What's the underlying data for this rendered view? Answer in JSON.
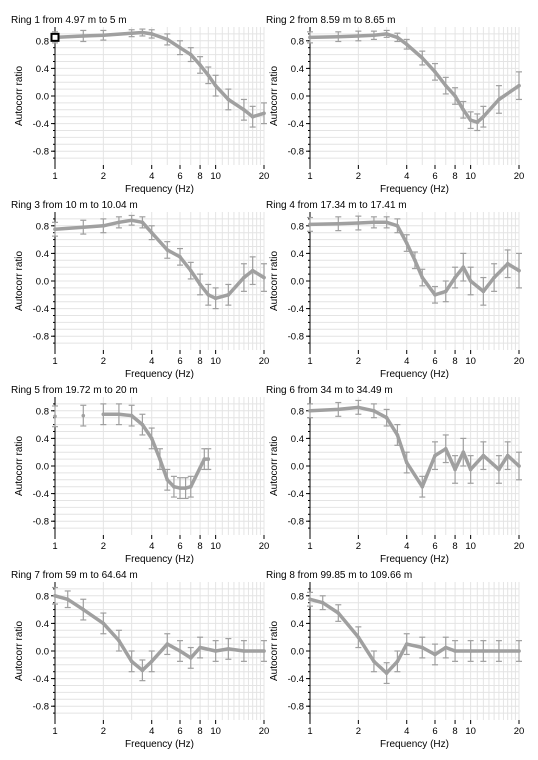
{
  "common": {
    "xlabel": "Frequency (Hz)",
    "ylabel": "Autocorr ratio",
    "x_ticks": [
      1,
      2,
      4,
      6,
      8,
      10,
      20
    ],
    "x_tick_labels": [
      "1",
      "2",
      "4",
      "6",
      "8",
      "10",
      "20"
    ],
    "y_ticks": [
      0.8,
      0.4,
      0.0,
      -0.4,
      -0.8
    ],
    "y_tick_labels": [
      "0.8",
      "0.4",
      "0.0",
      "-0.4",
      "-0.8"
    ],
    "series_color": "#a0a0a0"
  },
  "chart_data": [
    {
      "type": "line",
      "title": "Ring 1 from 4.97 m to 5 m",
      "xlabel": "Frequency (Hz)",
      "ylabel": "Autocorr ratio",
      "xscale": "log",
      "xlim": [
        1,
        20
      ],
      "ylim": [
        -1.0,
        1.0
      ],
      "grid": true,
      "x": [
        1,
        1.5,
        2,
        3,
        3.5,
        4,
        5,
        6,
        7,
        8,
        9,
        10,
        12,
        15,
        17,
        20
      ],
      "y": [
        0.85,
        0.87,
        0.88,
        0.91,
        0.92,
        0.9,
        0.82,
        0.7,
        0.6,
        0.45,
        0.3,
        0.15,
        -0.05,
        -0.2,
        -0.3,
        -0.25
      ],
      "yerr": [
        0.08,
        0.08,
        0.07,
        0.05,
        0.05,
        0.06,
        0.08,
        0.1,
        0.1,
        0.12,
        0.12,
        0.15,
        0.15,
        0.15,
        0.15,
        0.15
      ]
    },
    {
      "type": "line",
      "title": "Ring 2 from 8.59 m to 8.65 m",
      "xlabel": "Frequency (Hz)",
      "ylabel": "Autocorr ratio",
      "xscale": "log",
      "xlim": [
        1,
        20
      ],
      "ylim": [
        -1.0,
        1.0
      ],
      "grid": true,
      "x": [
        1,
        1.5,
        2,
        2.5,
        3,
        3.5,
        4,
        5,
        6,
        7,
        8,
        9,
        10,
        11,
        12,
        15,
        20
      ],
      "y": [
        0.85,
        0.86,
        0.87,
        0.88,
        0.9,
        0.85,
        0.75,
        0.55,
        0.35,
        0.15,
        0.0,
        -0.2,
        -0.35,
        -0.38,
        -0.3,
        -0.05,
        0.15
      ],
      "yerr": [
        0.08,
        0.07,
        0.07,
        0.06,
        0.05,
        0.06,
        0.07,
        0.1,
        0.12,
        0.12,
        0.12,
        0.12,
        0.12,
        0.12,
        0.15,
        0.2,
        0.2
      ]
    },
    {
      "type": "line",
      "title": "Ring 3 from 10 m to 10.04 m",
      "xlabel": "Frequency (Hz)",
      "ylabel": "Autocorr ratio",
      "xscale": "log",
      "xlim": [
        1,
        20
      ],
      "ylim": [
        -1.0,
        1.0
      ],
      "grid": true,
      "x": [
        1,
        1.5,
        2,
        2.5,
        3,
        3.5,
        4,
        5,
        6,
        7,
        8,
        9,
        10,
        12,
        15,
        17,
        20
      ],
      "y": [
        0.75,
        0.78,
        0.8,
        0.85,
        0.88,
        0.85,
        0.7,
        0.45,
        0.35,
        0.15,
        -0.05,
        -0.2,
        -0.25,
        -0.2,
        0.05,
        0.15,
        0.05
      ],
      "yerr": [
        0.1,
        0.1,
        0.1,
        0.08,
        0.07,
        0.08,
        0.1,
        0.12,
        0.12,
        0.12,
        0.15,
        0.15,
        0.15,
        0.15,
        0.2,
        0.2,
        0.2
      ]
    },
    {
      "type": "line",
      "title": "Ring 4 from 17.34 m to 17.41 m",
      "xlabel": "Frequency (Hz)",
      "ylabel": "Autocorr ratio",
      "xscale": "log",
      "xlim": [
        1,
        20
      ],
      "ylim": [
        -1.0,
        1.0
      ],
      "grid": true,
      "x": [
        1,
        1.5,
        2,
        2.5,
        3,
        3.5,
        4,
        4.5,
        5,
        6,
        7,
        8,
        9,
        10,
        12,
        14,
        17,
        20
      ],
      "y": [
        0.82,
        0.83,
        0.84,
        0.85,
        0.85,
        0.8,
        0.55,
        0.3,
        0.05,
        -0.2,
        -0.15,
        0.05,
        0.2,
        0.0,
        -0.15,
        0.05,
        0.25,
        0.15
      ],
      "yerr": [
        0.1,
        0.1,
        0.1,
        0.08,
        0.08,
        0.1,
        0.12,
        0.12,
        0.12,
        0.12,
        0.15,
        0.15,
        0.2,
        0.2,
        0.2,
        0.2,
        0.2,
        0.25
      ]
    },
    {
      "type": "line",
      "title": "Ring 5 from 19.72 m to 20 m",
      "xlabel": "Frequency (Hz)",
      "ylabel": "Autocorr ratio",
      "xscale": "log",
      "xlim": [
        1,
        20
      ],
      "ylim": [
        -1.0,
        1.0
      ],
      "grid": true,
      "x": [
        1,
        1.5,
        2,
        2.5,
        3,
        3.5,
        4,
        4.5,
        5,
        5.5,
        6,
        6.5,
        7,
        8.5,
        9
      ],
      "y": [
        0.72,
        0.73,
        0.75,
        0.75,
        0.73,
        0.6,
        0.4,
        0.1,
        -0.2,
        -0.3,
        -0.32,
        -0.32,
        -0.3,
        0.1,
        0.1
      ],
      "yerr": [
        0.15,
        0.15,
        0.15,
        0.15,
        0.15,
        0.15,
        0.15,
        0.15,
        0.15,
        0.15,
        0.15,
        0.15,
        0.15,
        0.15,
        0.15
      ]
    },
    {
      "type": "line",
      "title": "Ring 6 from 34 m to 34.49 m",
      "xlabel": "Frequency (Hz)",
      "ylabel": "Autocorr ratio",
      "xscale": "log",
      "xlim": [
        1,
        20
      ],
      "ylim": [
        -1.0,
        1.0
      ],
      "grid": true,
      "x": [
        1,
        1.5,
        2,
        2.5,
        3,
        3.5,
        4,
        5,
        6,
        7,
        8,
        9,
        10,
        12,
        15,
        17,
        20
      ],
      "y": [
        0.8,
        0.82,
        0.85,
        0.8,
        0.7,
        0.45,
        0.05,
        -0.3,
        0.15,
        0.25,
        -0.05,
        0.2,
        -0.05,
        0.15,
        -0.05,
        0.15,
        0.0
      ],
      "yerr": [
        0.1,
        0.1,
        0.1,
        0.1,
        0.12,
        0.15,
        0.15,
        0.15,
        0.2,
        0.2,
        0.2,
        0.2,
        0.2,
        0.2,
        0.2,
        0.2,
        0.2
      ]
    },
    {
      "type": "line",
      "title": "Ring 7 from 59 m to 64.64 m",
      "xlabel": "Frequency (Hz)",
      "ylabel": "Autocorr ratio",
      "xscale": "log",
      "xlim": [
        1,
        20
      ],
      "ylim": [
        -1.0,
        1.0
      ],
      "grid": true,
      "x": [
        1,
        1.2,
        1.5,
        2,
        2.5,
        3,
        3.5,
        4,
        5,
        6,
        7,
        8,
        10,
        12,
        15,
        20
      ],
      "y": [
        0.8,
        0.75,
        0.6,
        0.4,
        0.15,
        -0.15,
        -0.28,
        -0.15,
        0.1,
        0.0,
        -0.1,
        0.05,
        0.0,
        0.03,
        0.0,
        0.0
      ],
      "yerr": [
        0.12,
        0.12,
        0.15,
        0.15,
        0.15,
        0.15,
        0.15,
        0.15,
        0.15,
        0.15,
        0.15,
        0.15,
        0.15,
        0.15,
        0.15,
        0.15
      ]
    },
    {
      "type": "line",
      "title": "Ring 8 from 99.85 m to 109.66 m",
      "xlabel": "Frequency (Hz)",
      "ylabel": "Autocorr ratio",
      "xscale": "log",
      "xlim": [
        1,
        20
      ],
      "ylim": [
        -1.0,
        1.0
      ],
      "grid": true,
      "x": [
        1,
        1.2,
        1.5,
        2,
        2.5,
        3,
        3.5,
        4,
        5,
        6,
        7,
        8,
        10,
        12,
        15,
        20
      ],
      "y": [
        0.75,
        0.7,
        0.55,
        0.2,
        -0.15,
        -0.32,
        -0.15,
        0.1,
        0.05,
        -0.05,
        0.05,
        0.0,
        0.0,
        0.0,
        0.0,
        0.0
      ],
      "yerr": [
        0.1,
        0.1,
        0.12,
        0.15,
        0.15,
        0.15,
        0.15,
        0.15,
        0.15,
        0.15,
        0.15,
        0.15,
        0.15,
        0.15,
        0.15,
        0.15
      ]
    }
  ]
}
